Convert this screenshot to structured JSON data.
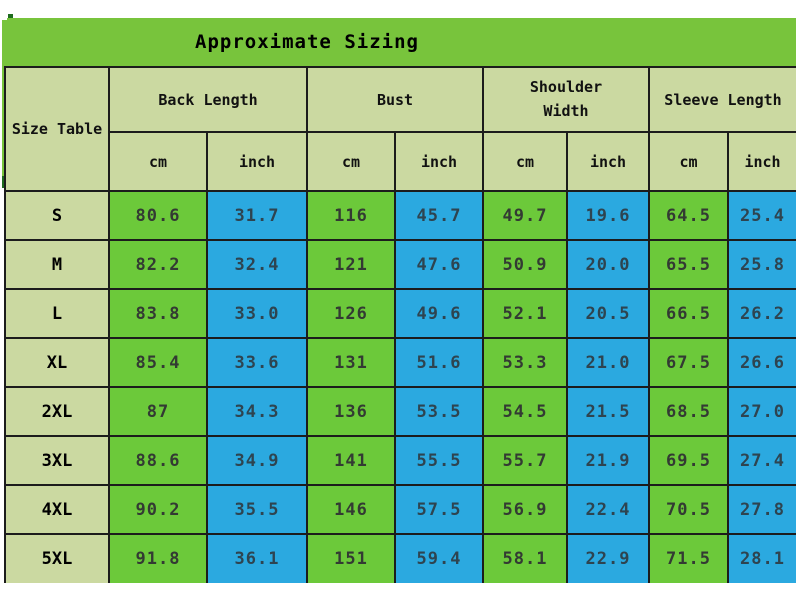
{
  "title": "Approximate Sizing",
  "chart_data": {
    "type": "table",
    "title": "Approximate Sizing",
    "row_header": "Size Table",
    "column_groups": [
      {
        "label": "Back Length"
      },
      {
        "label": "Bust"
      },
      {
        "label": "Shoulder Width"
      },
      {
        "label": "Sleeve Length"
      }
    ],
    "unit_headers": [
      "cm",
      "inch"
    ],
    "rows": [
      {
        "size": "S",
        "values": [
          "80.6",
          "31.7",
          "116",
          "45.7",
          "49.7",
          "19.6",
          "64.5",
          "25.4"
        ]
      },
      {
        "size": "M",
        "values": [
          "82.2",
          "32.4",
          "121",
          "47.6",
          "50.9",
          "20.0",
          "65.5",
          "25.8"
        ]
      },
      {
        "size": "L",
        "values": [
          "83.8",
          "33.0",
          "126",
          "49.6",
          "52.1",
          "20.5",
          "66.5",
          "26.2"
        ]
      },
      {
        "size": "XL",
        "values": [
          "85.4",
          "33.6",
          "131",
          "51.6",
          "53.3",
          "21.0",
          "67.5",
          "26.6"
        ]
      },
      {
        "size": "2XL",
        "values": [
          "87",
          "34.3",
          "136",
          "53.5",
          "54.5",
          "21.5",
          "68.5",
          "27.0"
        ]
      },
      {
        "size": "3XL",
        "values": [
          "88.6",
          "34.9",
          "141",
          "55.5",
          "55.7",
          "21.9",
          "69.5",
          "27.4"
        ]
      },
      {
        "size": "4XL",
        "values": [
          "90.2",
          "35.5",
          "146",
          "57.5",
          "56.9",
          "22.4",
          "70.5",
          "27.8"
        ]
      },
      {
        "size": "5XL",
        "values": [
          "91.8",
          "36.1",
          "151",
          "59.4",
          "58.1",
          "22.9",
          "71.5",
          "28.1"
        ]
      }
    ]
  },
  "colors": {
    "banner_green": "#78C43C",
    "cm_cell_green": "#6CC93A",
    "inch_cell_blue": "#2BA9E0",
    "header_olive": "#CBD9A1",
    "border": "#1C1C1C"
  }
}
